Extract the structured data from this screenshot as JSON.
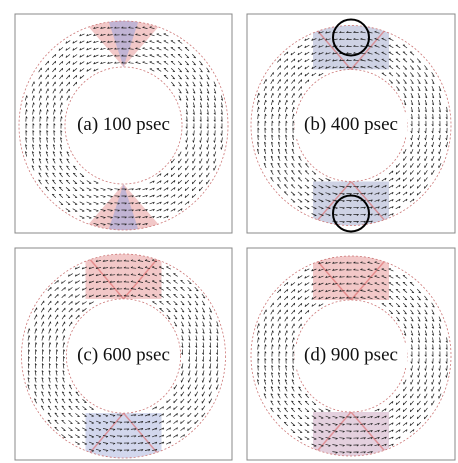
{
  "panels": [
    {
      "label": "(a) 100 psec"
    },
    {
      "label": "(b) 400 psec"
    },
    {
      "label": "(c) 600 psec"
    },
    {
      "label": "(d) 900 psec"
    }
  ]
}
